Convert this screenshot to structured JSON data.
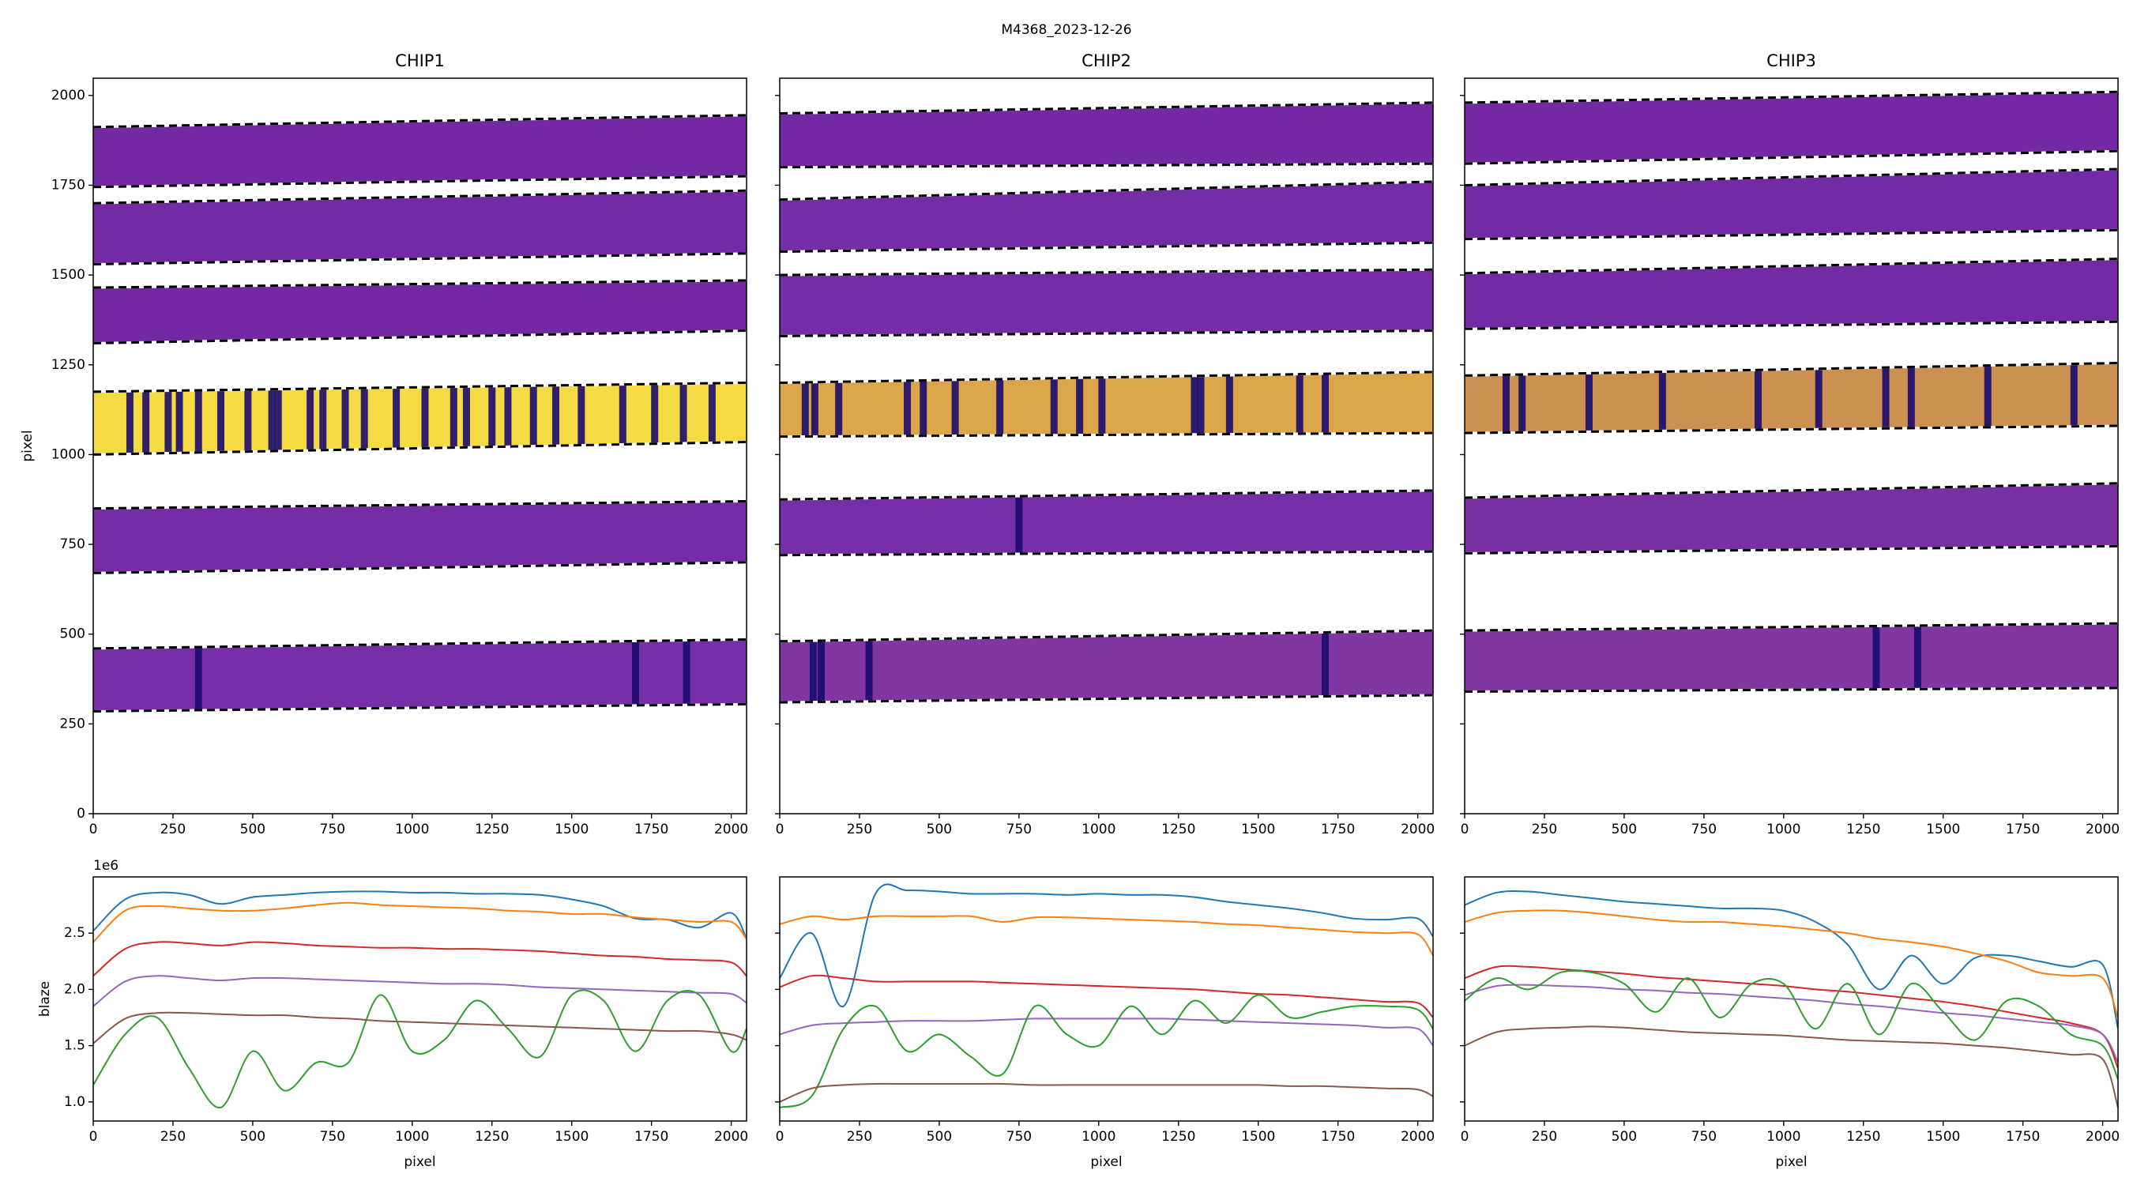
{
  "title": "M4368_2023-12-26",
  "chart_data": [
    {
      "type": "image",
      "title": "CHIP1",
      "ylabel": "pixel",
      "xlim": [
        0,
        2048
      ],
      "ylim": [
        0,
        2048
      ],
      "xticks": [
        0,
        250,
        500,
        750,
        1000,
        1250,
        1500,
        1750,
        2000
      ],
      "yticks": [
        0,
        250,
        500,
        750,
        1000,
        1250,
        1500,
        1750,
        2000
      ],
      "show_ytick_labels": true,
      "orders": [
        {
          "lower": [
            1745,
            1775
          ],
          "upper": [
            1912,
            1945
          ],
          "color": "#6a1e9c",
          "dark_lines": []
        },
        {
          "lower": [
            1530,
            1560
          ],
          "upper": [
            1700,
            1735
          ],
          "color": "#6b20a0",
          "dark_lines": []
        },
        {
          "lower": [
            1310,
            1345
          ],
          "upper": [
            1465,
            1485
          ],
          "color": "#6a1e9c",
          "dark_lines": []
        },
        {
          "lower": [
            1000,
            1035
          ],
          "upper": [
            1175,
            1200
          ],
          "color": "#f3d93a",
          "dark_lines": [
            115,
            165,
            235,
            270,
            330,
            400,
            485,
            560,
            580,
            680,
            720,
            790,
            850,
            950,
            1040,
            1130,
            1170,
            1250,
            1300,
            1380,
            1450,
            1530,
            1660,
            1760,
            1850,
            1940
          ]
        },
        {
          "lower": [
            670,
            700
          ],
          "upper": [
            850,
            870
          ],
          "color": "#6d22a0",
          "dark_lines": []
        },
        {
          "lower": [
            285,
            305
          ],
          "upper": [
            460,
            485
          ],
          "color": "#6e24a2",
          "dark_lines": [
            330,
            1700,
            1860
          ]
        }
      ]
    },
    {
      "type": "image",
      "title": "CHIP2",
      "xlim": [
        0,
        2048
      ],
      "ylim": [
        0,
        2048
      ],
      "xticks": [
        0,
        250,
        500,
        750,
        1000,
        1250,
        1500,
        1750,
        2000
      ],
      "yticks": [
        0,
        250,
        500,
        750,
        1000,
        1250,
        1500,
        1750,
        2000
      ],
      "show_ytick_labels": false,
      "orders": [
        {
          "lower": [
            1800,
            1810
          ],
          "upper": [
            1950,
            1980
          ],
          "color": "#6a1e9c",
          "dark_lines": []
        },
        {
          "lower": [
            1565,
            1590
          ],
          "upper": [
            1710,
            1760
          ],
          "color": "#6c22a0",
          "dark_lines": []
        },
        {
          "lower": [
            1330,
            1345
          ],
          "upper": [
            1500,
            1515
          ],
          "color": "#6c22a0",
          "dark_lines": []
        },
        {
          "lower": [
            1050,
            1060
          ],
          "upper": [
            1200,
            1230
          ],
          "color": "#d9a040",
          "dark_lines": [
            80,
            110,
            185,
            400,
            450,
            550,
            690,
            860,
            940,
            1010,
            1300,
            1320,
            1410,
            1630,
            1710
          ]
        },
        {
          "lower": [
            720,
            730
          ],
          "upper": [
            875,
            900
          ],
          "color": "#6e24a2",
          "dark_lines": [
            750
          ]
        },
        {
          "lower": [
            310,
            330
          ],
          "upper": [
            480,
            510
          ],
          "color": "#7a2c9c",
          "dark_lines": [
            105,
            130,
            280,
            1710
          ]
        }
      ]
    },
    {
      "type": "image",
      "title": "CHIP3",
      "xlim": [
        0,
        2048
      ],
      "ylim": [
        0,
        2048
      ],
      "xticks": [
        0,
        250,
        500,
        750,
        1000,
        1250,
        1500,
        1750,
        2000
      ],
      "yticks": [
        0,
        250,
        500,
        750,
        1000,
        1250,
        1500,
        1750,
        2000
      ],
      "show_ytick_labels": false,
      "orders": [
        {
          "lower": [
            1810,
            1845
          ],
          "upper": [
            1980,
            2010
          ],
          "color": "#6a1e9c",
          "dark_lines": []
        },
        {
          "lower": [
            1600,
            1625
          ],
          "upper": [
            1750,
            1795
          ],
          "color": "#6b20a0",
          "dark_lines": []
        },
        {
          "lower": [
            1350,
            1370
          ],
          "upper": [
            1505,
            1545
          ],
          "color": "#6b20a0",
          "dark_lines": []
        },
        {
          "lower": [
            1060,
            1080
          ],
          "upper": [
            1220,
            1255
          ],
          "color": "#c98a48",
          "dark_lines": [
            130,
            180,
            390,
            620,
            920,
            1110,
            1320,
            1400,
            1640,
            1910
          ]
        },
        {
          "lower": [
            725,
            745
          ],
          "upper": [
            880,
            920
          ],
          "color": "#70269e",
          "dark_lines": []
        },
        {
          "lower": [
            340,
            350
          ],
          "upper": [
            510,
            530
          ],
          "color": "#7a2c9c",
          "dark_lines": [
            1290,
            1420
          ]
        }
      ]
    },
    {
      "type": "line",
      "xlabel": "pixel",
      "ylabel": "blaze",
      "offset_text": "1e6",
      "xlim": [
        0,
        2048
      ],
      "ylim": [
        0.83,
        3.0
      ],
      "xticks": [
        0,
        250,
        500,
        750,
        1000,
        1250,
        1500,
        1750,
        2000
      ],
      "yticks": [
        {
          "value": 1.0,
          "label": "1.0"
        },
        1.5,
        {
          "value": 2.0,
          "label": "2.0"
        },
        2.5
      ],
      "show_ytick_labels": true,
      "x": [
        0,
        100,
        200,
        300,
        400,
        500,
        600,
        700,
        800,
        900,
        1000,
        1100,
        1200,
        1300,
        1400,
        1500,
        1600,
        1700,
        1800,
        1900,
        2000,
        2048
      ],
      "series": [
        {
          "color": "#1f77b4",
          "values": [
            2.52,
            2.8,
            2.86,
            2.84,
            2.76,
            2.82,
            2.84,
            2.86,
            2.87,
            2.87,
            2.86,
            2.86,
            2.85,
            2.85,
            2.84,
            2.8,
            2.74,
            2.63,
            2.62,
            2.55,
            2.68,
            2.45
          ]
        },
        {
          "color": "#ff7f0e",
          "values": [
            2.42,
            2.7,
            2.74,
            2.72,
            2.7,
            2.7,
            2.72,
            2.75,
            2.77,
            2.75,
            2.74,
            2.73,
            2.72,
            2.7,
            2.69,
            2.67,
            2.67,
            2.64,
            2.62,
            2.6,
            2.6,
            2.45
          ]
        },
        {
          "color": "#d62728",
          "values": [
            2.12,
            2.36,
            2.42,
            2.41,
            2.39,
            2.42,
            2.41,
            2.39,
            2.38,
            2.37,
            2.37,
            2.36,
            2.36,
            2.35,
            2.34,
            2.32,
            2.3,
            2.29,
            2.27,
            2.26,
            2.24,
            2.12
          ]
        },
        {
          "color": "#9467bd",
          "values": [
            1.85,
            2.07,
            2.12,
            2.1,
            2.08,
            2.1,
            2.1,
            2.09,
            2.08,
            2.07,
            2.06,
            2.05,
            2.05,
            2.04,
            2.02,
            2.01,
            2.0,
            1.99,
            1.98,
            1.97,
            1.96,
            1.88
          ]
        },
        {
          "color": "#2ca02c",
          "values": [
            1.15,
            1.6,
            1.75,
            1.3,
            0.95,
            1.45,
            1.1,
            1.35,
            1.35,
            1.95,
            1.45,
            1.55,
            1.9,
            1.65,
            1.4,
            1.95,
            1.9,
            1.45,
            1.9,
            1.95,
            1.45,
            1.65
          ]
        },
        {
          "color": "#8c564b",
          "values": [
            1.52,
            1.74,
            1.79,
            1.79,
            1.78,
            1.77,
            1.77,
            1.75,
            1.74,
            1.72,
            1.71,
            1.7,
            1.69,
            1.68,
            1.67,
            1.66,
            1.65,
            1.64,
            1.63,
            1.63,
            1.6,
            1.55
          ]
        }
      ]
    },
    {
      "type": "line",
      "xlabel": "pixel",
      "xlim": [
        0,
        2048
      ],
      "ylim": [
        0.83,
        3.0
      ],
      "xticks": [
        0,
        250,
        500,
        750,
        1000,
        1250,
        1500,
        1750,
        2000
      ],
      "yticks": [
        1.0,
        1.5,
        2.0,
        2.5
      ],
      "show_ytick_labels": false,
      "x": [
        0,
        100,
        200,
        300,
        400,
        500,
        600,
        700,
        800,
        900,
        1000,
        1100,
        1200,
        1300,
        1400,
        1500,
        1600,
        1700,
        1800,
        1900,
        2000,
        2048
      ],
      "series": [
        {
          "color": "#1f77b4",
          "values": [
            2.1,
            2.5,
            1.85,
            2.85,
            2.88,
            2.87,
            2.85,
            2.85,
            2.85,
            2.84,
            2.85,
            2.84,
            2.84,
            2.82,
            2.78,
            2.75,
            2.72,
            2.68,
            2.63,
            2.62,
            2.63,
            2.47
          ]
        },
        {
          "color": "#ff7f0e",
          "values": [
            2.58,
            2.65,
            2.62,
            2.65,
            2.65,
            2.65,
            2.65,
            2.6,
            2.64,
            2.64,
            2.63,
            2.62,
            2.61,
            2.6,
            2.58,
            2.57,
            2.55,
            2.53,
            2.51,
            2.5,
            2.49,
            2.3
          ]
        },
        {
          "color": "#d62728",
          "values": [
            2.02,
            2.12,
            2.1,
            2.07,
            2.07,
            2.07,
            2.07,
            2.06,
            2.05,
            2.04,
            2.03,
            2.02,
            2.01,
            2.0,
            1.98,
            1.96,
            1.95,
            1.93,
            1.91,
            1.89,
            1.88,
            1.75
          ]
        },
        {
          "color": "#9467bd",
          "values": [
            1.6,
            1.68,
            1.7,
            1.71,
            1.72,
            1.72,
            1.72,
            1.73,
            1.74,
            1.74,
            1.74,
            1.74,
            1.74,
            1.73,
            1.72,
            1.71,
            1.7,
            1.69,
            1.68,
            1.66,
            1.65,
            1.5
          ]
        },
        {
          "color": "#2ca02c",
          "values": [
            0.95,
            1.05,
            1.65,
            1.85,
            1.45,
            1.6,
            1.4,
            1.25,
            1.85,
            1.6,
            1.5,
            1.85,
            1.6,
            1.9,
            1.7,
            1.95,
            1.75,
            1.8,
            1.85,
            1.85,
            1.82,
            1.65
          ]
        },
        {
          "color": "#8c564b",
          "values": [
            1.0,
            1.12,
            1.15,
            1.16,
            1.16,
            1.16,
            1.16,
            1.16,
            1.15,
            1.15,
            1.15,
            1.15,
            1.15,
            1.15,
            1.15,
            1.15,
            1.14,
            1.14,
            1.13,
            1.12,
            1.11,
            1.05
          ]
        }
      ]
    },
    {
      "type": "line",
      "xlabel": "pixel",
      "xlim": [
        0,
        2048
      ],
      "ylim": [
        0.83,
        3.0
      ],
      "xticks": [
        0,
        250,
        500,
        750,
        1000,
        1250,
        1500,
        1750,
        2000
      ],
      "yticks": [
        1.0,
        1.5,
        2.0,
        2.5
      ],
      "show_ytick_labels": false,
      "x": [
        0,
        100,
        200,
        300,
        400,
        500,
        600,
        700,
        800,
        900,
        1000,
        1100,
        1200,
        1300,
        1400,
        1500,
        1600,
        1700,
        1800,
        1900,
        2000,
        2048
      ],
      "series": [
        {
          "color": "#1f77b4",
          "values": [
            2.75,
            2.86,
            2.87,
            2.84,
            2.81,
            2.78,
            2.76,
            2.74,
            2.72,
            2.72,
            2.7,
            2.6,
            2.4,
            2.0,
            2.3,
            2.05,
            2.28,
            2.3,
            2.25,
            2.2,
            2.22,
            1.65
          ]
        },
        {
          "color": "#ff7f0e",
          "values": [
            2.6,
            2.68,
            2.7,
            2.7,
            2.68,
            2.65,
            2.62,
            2.6,
            2.6,
            2.58,
            2.56,
            2.53,
            2.5,
            2.45,
            2.42,
            2.38,
            2.32,
            2.25,
            2.15,
            2.12,
            2.1,
            1.75
          ]
        },
        {
          "color": "#d62728",
          "values": [
            2.1,
            2.2,
            2.2,
            2.18,
            2.16,
            2.14,
            2.11,
            2.09,
            2.07,
            2.05,
            2.03,
            2.0,
            1.98,
            1.95,
            1.92,
            1.89,
            1.85,
            1.8,
            1.75,
            1.7,
            1.6,
            1.3
          ]
        },
        {
          "color": "#9467bd",
          "values": [
            1.95,
            2.03,
            2.04,
            2.03,
            2.02,
            2.0,
            1.99,
            1.97,
            1.96,
            1.94,
            1.92,
            1.9,
            1.87,
            1.85,
            1.82,
            1.79,
            1.77,
            1.74,
            1.71,
            1.68,
            1.6,
            1.35
          ]
        },
        {
          "color": "#2ca02c",
          "values": [
            1.9,
            2.1,
            2.0,
            2.15,
            2.15,
            2.05,
            1.8,
            2.1,
            1.75,
            2.05,
            2.05,
            1.65,
            2.05,
            1.6,
            2.05,
            1.8,
            1.55,
            1.9,
            1.85,
            1.6,
            1.5,
            1.2
          ]
        },
        {
          "color": "#8c564b",
          "values": [
            1.5,
            1.62,
            1.65,
            1.66,
            1.67,
            1.66,
            1.64,
            1.62,
            1.61,
            1.6,
            1.59,
            1.57,
            1.55,
            1.54,
            1.53,
            1.52,
            1.5,
            1.48,
            1.45,
            1.42,
            1.38,
            0.95
          ]
        }
      ]
    }
  ]
}
